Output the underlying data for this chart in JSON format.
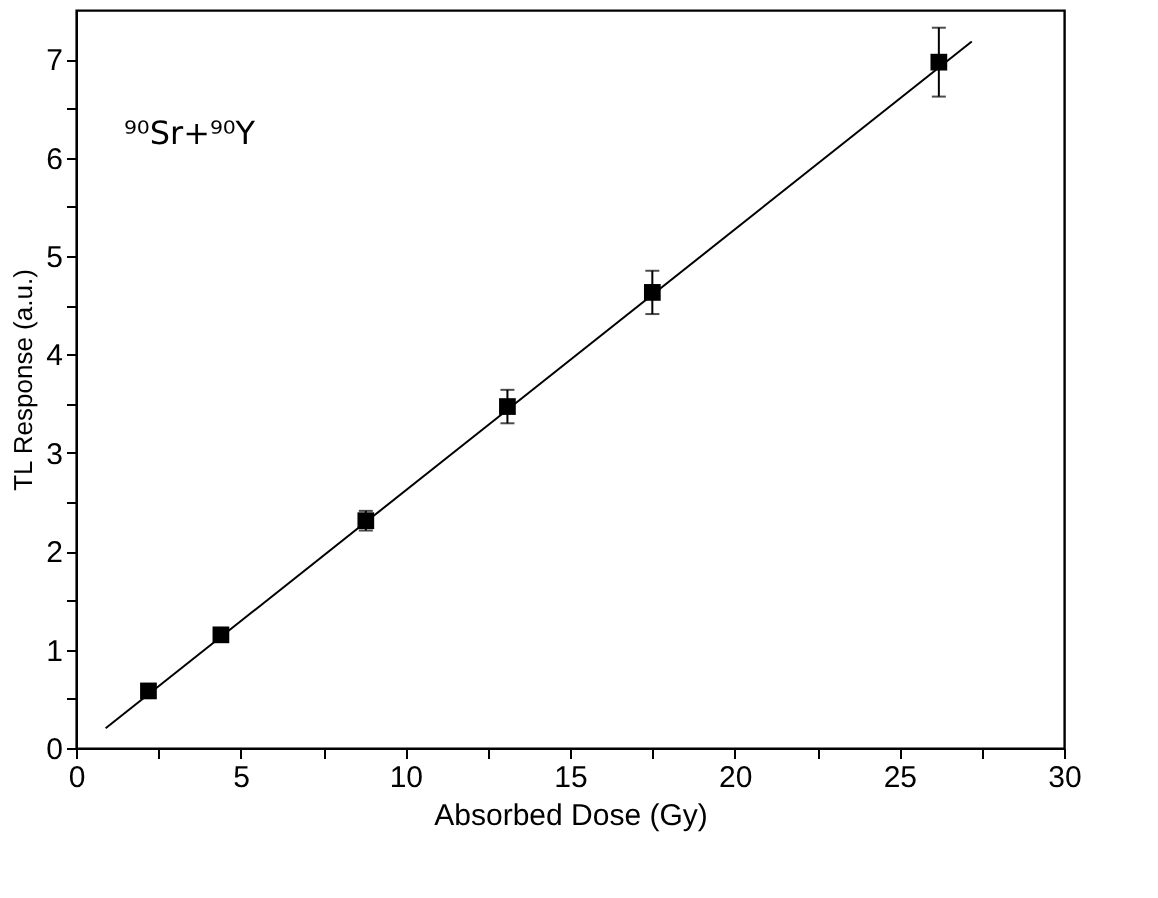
{
  "chart_data": {
    "type": "scatter",
    "xlabel": "Absorbed Dose (Gy)",
    "ylabel": "TL Response (a.u.)",
    "annotations": [
      "⁹⁰Sr+⁹⁰Y"
    ],
    "x": [
      2.2,
      4.4,
      8.8,
      13.1,
      17.5,
      26.2
    ],
    "series": [
      {
        "color": "#000000",
        "marker": "square",
        "values": [
          0.58,
          1.15,
          2.31,
          3.47,
          4.63,
          6.97
        ],
        "errors": [
          null,
          null,
          0.1,
          0.17,
          0.22,
          0.35
        ]
      },
      {
        "type": "line",
        "color": "#000000",
        "marker": "none",
        "x": [
          0.9,
          27.2
        ],
        "values": [
          0.2,
          7.18
        ]
      }
    ],
    "xlim": [
      0,
      30
    ],
    "ylim": [
      0,
      7.5
    ],
    "xticks": [
      0,
      {
        "value": 2.5,
        "label": null
      },
      5,
      {
        "value": 7.5,
        "label": null
      },
      10,
      {
        "value": 12.5,
        "label": null
      },
      15,
      {
        "value": 17.5,
        "label": null
      },
      20,
      {
        "value": 22.5,
        "label": null
      },
      25,
      {
        "value": 27.5,
        "label": null
      },
      30
    ],
    "yticks": [
      0,
      {
        "value": 0.5,
        "label": null
      },
      1,
      {
        "value": 1.5,
        "label": null
      },
      2,
      {
        "value": 2.5,
        "label": null
      },
      3,
      {
        "value": 3.5,
        "label": null
      },
      4,
      {
        "value": 4.5,
        "label": null
      },
      5,
      {
        "value": 5.5,
        "label": null
      },
      6,
      {
        "value": 6.5,
        "label": null
      },
      7
    ],
    "grid": false
  }
}
